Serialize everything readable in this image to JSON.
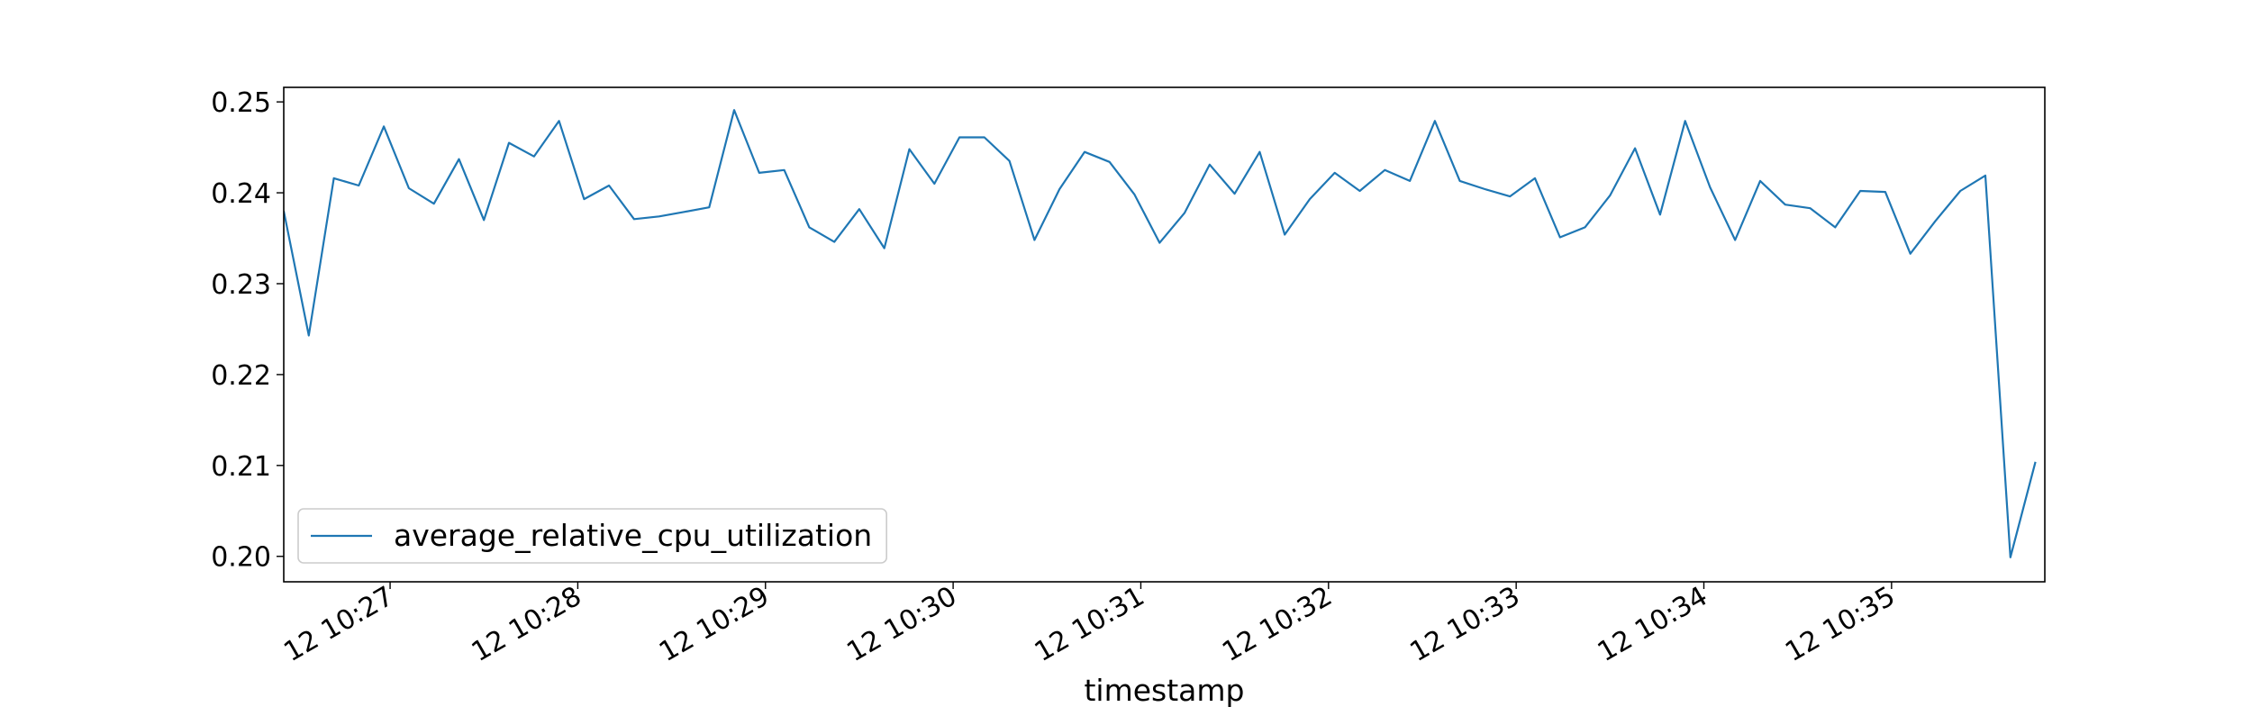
{
  "chart_data": {
    "type": "line",
    "title": "",
    "xlabel": "timestamp",
    "ylabel": "",
    "x_unit": "datetime",
    "xlim": [
      "12 10:26:26",
      "12 10:35:49"
    ],
    "ylim": [
      0.1972,
      0.2516
    ],
    "x_ticks": [
      {
        "t": "12 10:27:00",
        "label": "12 10:27"
      },
      {
        "t": "12 10:28:00",
        "label": "12 10:28"
      },
      {
        "t": "12 10:29:00",
        "label": "12 10:29"
      },
      {
        "t": "12 10:30:00",
        "label": "12 10:30"
      },
      {
        "t": "12 10:31:00",
        "label": "12 10:31"
      },
      {
        "t": "12 10:32:00",
        "label": "12 10:32"
      },
      {
        "t": "12 10:33:00",
        "label": "12 10:33"
      },
      {
        "t": "12 10:34:00",
        "label": "12 10:34"
      },
      {
        "t": "12 10:35:00",
        "label": "12 10:35"
      }
    ],
    "y_ticks": [
      {
        "v": 0.2,
        "label": "0.20"
      },
      {
        "v": 0.21,
        "label": "0.21"
      },
      {
        "v": 0.22,
        "label": "0.22"
      },
      {
        "v": 0.23,
        "label": "0.23"
      },
      {
        "v": 0.24,
        "label": "0.24"
      },
      {
        "v": 0.25,
        "label": "0.25"
      }
    ],
    "grid": false,
    "legend_position": "lower-left",
    "series": [
      {
        "name": "average_relative_cpu_utilization",
        "color": "#1f77b4",
        "x": [
          "12 10:26:26",
          "12 10:26:34",
          "12 10:26:42",
          "12 10:26:50",
          "12 10:26:58",
          "12 10:27:06",
          "12 10:27:14",
          "12 10:27:22",
          "12 10:27:30",
          "12 10:27:38",
          "12 10:27:46",
          "12 10:27:54",
          "12 10:28:02",
          "12 10:28:10",
          "12 10:28:18",
          "12 10:28:26",
          "12 10:28:34",
          "12 10:28:42",
          "12 10:28:50",
          "12 10:28:58",
          "12 10:29:06",
          "12 10:29:14",
          "12 10:29:22",
          "12 10:29:30",
          "12 10:29:38",
          "12 10:29:46",
          "12 10:29:54",
          "12 10:30:02",
          "12 10:30:10",
          "12 10:30:18",
          "12 10:30:26",
          "12 10:30:34",
          "12 10:30:42",
          "12 10:30:50",
          "12 10:30:58",
          "12 10:31:06",
          "12 10:31:14",
          "12 10:31:22",
          "12 10:31:30",
          "12 10:31:38",
          "12 10:31:46",
          "12 10:31:54",
          "12 10:32:02",
          "12 10:32:10",
          "12 10:32:18",
          "12 10:32:26",
          "12 10:32:34",
          "12 10:32:42",
          "12 10:32:50",
          "12 10:32:58",
          "12 10:33:06",
          "12 10:33:14",
          "12 10:33:22",
          "12 10:33:30",
          "12 10:33:38",
          "12 10:33:46",
          "12 10:33:54",
          "12 10:34:02",
          "12 10:34:10",
          "12 10:34:18",
          "12 10:34:26",
          "12 10:34:34",
          "12 10:34:42",
          "12 10:34:50",
          "12 10:34:58",
          "12 10:35:06",
          "12 10:35:14",
          "12 10:35:22",
          "12 10:35:30",
          "12 10:35:38",
          "12 10:35:46"
        ],
        "values": [
          0.238,
          0.2243,
          0.2416,
          0.2408,
          0.2473,
          0.2405,
          0.2388,
          0.2437,
          0.237,
          0.2455,
          0.244,
          0.2479,
          0.2393,
          0.2408,
          0.2371,
          0.2374,
          0.2379,
          0.2384,
          0.2491,
          0.2422,
          0.2425,
          0.2362,
          0.2346,
          0.2382,
          0.2339,
          0.2448,
          0.241,
          0.2461,
          0.2461,
          0.2435,
          0.2348,
          0.2404,
          0.2445,
          0.2434,
          0.2398,
          0.2345,
          0.2378,
          0.2431,
          0.2399,
          0.2445,
          0.2354,
          0.2393,
          0.2422,
          0.2402,
          0.2425,
          0.2413,
          0.2479,
          0.2413,
          0.2404,
          0.2396,
          0.2416,
          0.2351,
          0.2362,
          0.2397,
          0.2449,
          0.2376,
          0.2479,
          0.2406,
          0.2348,
          0.2413,
          0.2387,
          0.2383,
          0.2362,
          0.2402,
          0.2401,
          0.2333,
          0.2369,
          0.2402,
          0.2419,
          0.1999,
          0.2104
        ]
      }
    ]
  }
}
